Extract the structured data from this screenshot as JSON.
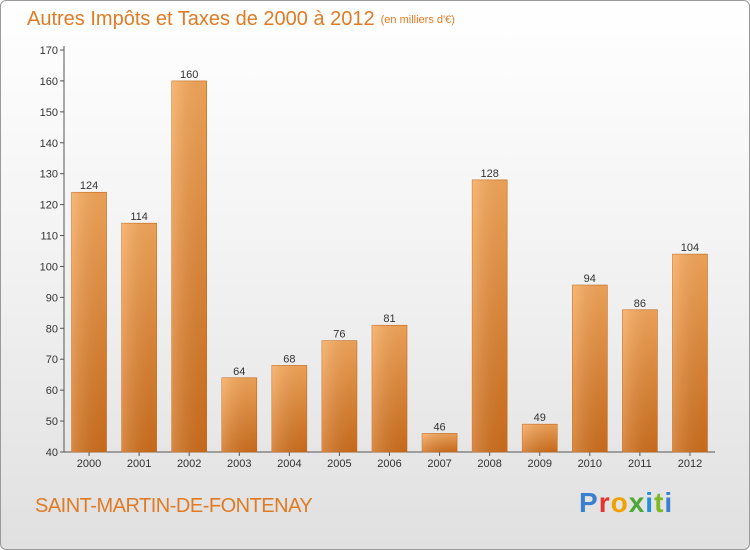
{
  "header": {
    "title": "Autres Impôts et Taxes de 2000 à 2012",
    "unit": "(en milliers d'€)"
  },
  "footer": {
    "city": "SAINT-MARTIN-DE-FONTENAY",
    "logo": "Proxiti"
  },
  "colors": {
    "accent": "#e07b24",
    "bar_light": "#f7a85a",
    "bar_dark": "#d06f1c"
  },
  "chart_data": {
    "type": "bar",
    "title": "Autres Impôts et Taxes de 2000 à 2012",
    "subtitle": "(en milliers d'€)",
    "xlabel": "",
    "ylabel": "",
    "categories": [
      "2000",
      "2001",
      "2002",
      "2003",
      "2004",
      "2005",
      "2006",
      "2007",
      "2008",
      "2009",
      "2010",
      "2011",
      "2012"
    ],
    "values": [
      124,
      114,
      160,
      64,
      68,
      76,
      81,
      46,
      128,
      49,
      94,
      86,
      104
    ],
    "ylim": [
      40,
      170
    ],
    "yticks": [
      40,
      50,
      60,
      70,
      80,
      90,
      100,
      110,
      120,
      130,
      140,
      150,
      160,
      170
    ],
    "grid": false,
    "legend": "none"
  }
}
